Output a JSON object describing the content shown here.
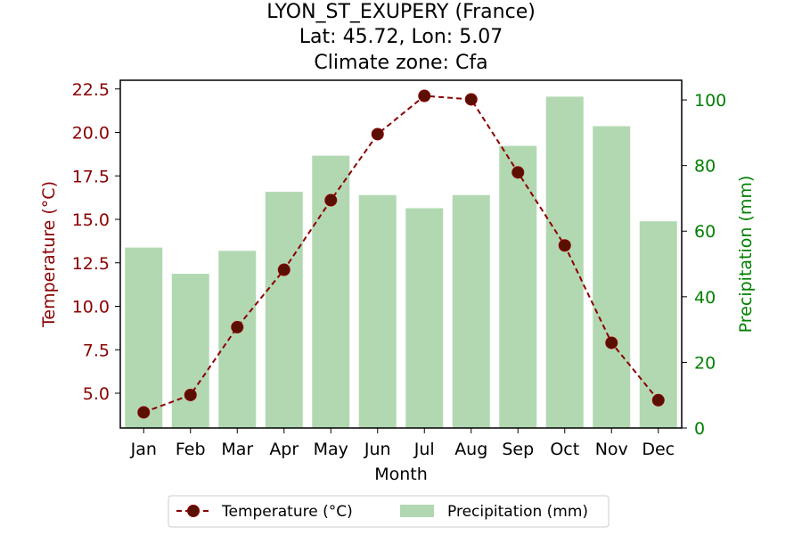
{
  "title_lines": [
    "LYON_ST_EXUPERY (France)",
    "Lat: 45.72, Lon: 5.07",
    "Climate zone: Cfa"
  ],
  "chart_data": {
    "type": "bar+line",
    "categories": [
      "Jan",
      "Feb",
      "Mar",
      "Apr",
      "May",
      "Jun",
      "Jul",
      "Aug",
      "Sep",
      "Oct",
      "Nov",
      "Dec"
    ],
    "series": [
      {
        "name": "Temperature (°C)",
        "type": "line",
        "axis": "left",
        "values": [
          3.9,
          4.9,
          8.8,
          12.1,
          16.1,
          19.9,
          22.1,
          21.9,
          17.7,
          13.5,
          7.9,
          4.6
        ],
        "color": "#8b0000",
        "line_style": "dashed",
        "marker": "circle"
      },
      {
        "name": "Precipitation (mm)",
        "type": "bar",
        "axis": "right",
        "values": [
          55,
          47,
          54,
          72,
          83,
          71,
          67,
          71,
          86,
          101,
          92,
          63
        ],
        "color": "#b2d8b2"
      }
    ],
    "xlabel": "Month",
    "ylabel_left": "Temperature (°C)",
    "ylabel_right": "Precipitation (mm)",
    "ylim_left": [
      3.0,
      23.0
    ],
    "ylim_right": [
      0,
      106
    ],
    "yticks_left": [
      "5.0",
      "7.5",
      "10.0",
      "12.5",
      "15.0",
      "17.5",
      "20.0",
      "22.5"
    ],
    "yticks_right": [
      "0",
      "20",
      "40",
      "60",
      "80",
      "100"
    ],
    "left_axis_color": "#8b0000",
    "right_axis_color": "#008000",
    "grid": false,
    "legend_position": "bottom-center"
  }
}
